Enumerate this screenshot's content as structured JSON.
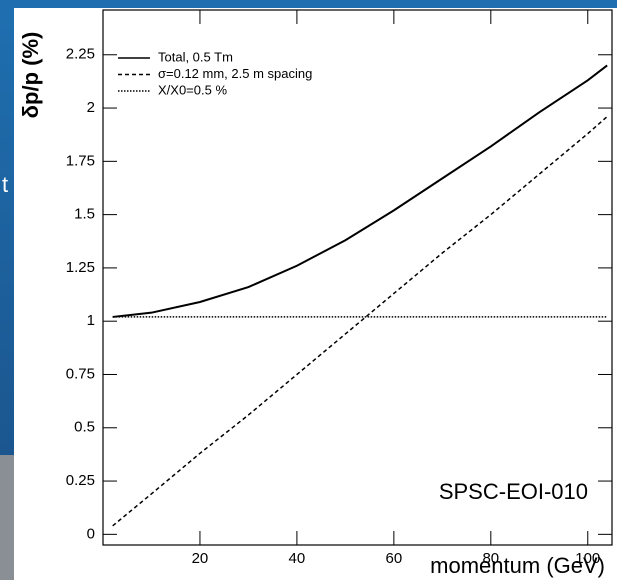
{
  "slide_fragment": "t",
  "chart_data": {
    "type": "line",
    "x_label": "momentum (GeV)",
    "y_label": "δp/p (%)",
    "annotation": "SPSC-EOI-010",
    "x": [
      2,
      10,
      20,
      30,
      40,
      50,
      60,
      70,
      80,
      90,
      100,
      104
    ],
    "series": [
      {
        "name": "Total, 0.5 Tm",
        "color": "#000000",
        "line_style": "solid",
        "values": [
          1.02,
          1.04,
          1.09,
          1.16,
          1.26,
          1.38,
          1.52,
          1.67,
          1.82,
          1.98,
          2.13,
          2.2
        ]
      },
      {
        "name": "σ=0.12 mm, 2.5 m spacing",
        "color": "#000000",
        "line_style": "dashed",
        "values": [
          0.04,
          0.19,
          0.38,
          0.56,
          0.75,
          0.94,
          1.13,
          1.32,
          1.5,
          1.69,
          1.88,
          1.96
        ]
      },
      {
        "name": "X/X0=0.5 %",
        "color": "#000000",
        "line_style": "dotted",
        "values": [
          1.02,
          1.02,
          1.02,
          1.02,
          1.02,
          1.02,
          1.02,
          1.02,
          1.02,
          1.02,
          1.02,
          1.02
        ]
      }
    ],
    "xlim": [
      0,
      105
    ],
    "xticks": [
      20,
      40,
      60,
      80,
      100
    ],
    "ylim": [
      -0.05,
      2.46
    ],
    "yticks": [
      0,
      0.25,
      0.5,
      0.75,
      1,
      1.25,
      1.5,
      1.75,
      2,
      2.25
    ],
    "grid": false
  }
}
